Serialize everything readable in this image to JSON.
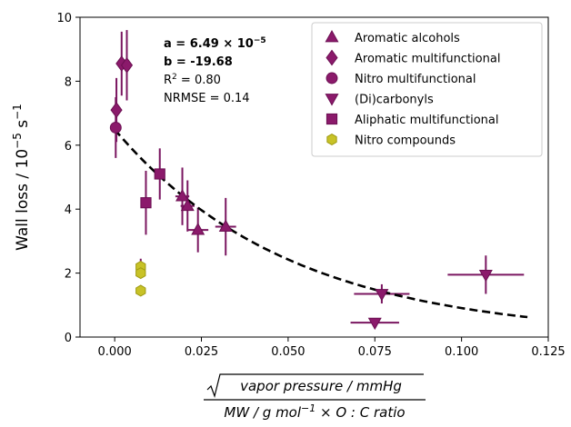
{
  "chart_data": {
    "type": "scatter",
    "xlabel": {
      "numerator": "vapor pressure / mmHg",
      "denominator_parts": [
        "MW / g mol",
        "−1",
        " × O : C ratio"
      ]
    },
    "ylabel": {
      "base": "Wall loss / 10",
      "exp_base": "−5",
      "unit": " s",
      "exp_unit": "−1"
    },
    "xlim": [
      -0.01,
      0.125
    ],
    "ylim": [
      0,
      10
    ],
    "xticks": [
      0.0,
      0.025,
      0.05,
      0.075,
      0.1,
      0.125
    ],
    "xtick_labels": [
      "0.000",
      "0.025",
      "0.050",
      "0.075",
      "0.100",
      "0.125"
    ],
    "yticks": [
      0,
      2,
      4,
      6,
      8,
      10
    ],
    "ytick_labels": [
      "0",
      "2",
      "4",
      "6",
      "8",
      "10"
    ],
    "legend_position": "top-right",
    "colors": {
      "purple": "#8b1a6b",
      "purple_edge": "#6b0f52",
      "yellow": "#c8c227",
      "yellow_edge": "#9e9a12",
      "fit": "#000000",
      "errorbar": "#7a1660"
    },
    "series": [
      {
        "name": "Aromatic alcohols",
        "marker": "triangle-up",
        "points": [
          {
            "x": 0.0195,
            "y": 4.4,
            "yerr": 0.9,
            "xerr": 0.002
          },
          {
            "x": 0.021,
            "y": 4.1,
            "yerr": 0.8,
            "xerr": 0.002
          },
          {
            "x": 0.024,
            "y": 3.35,
            "yerr": 0.7,
            "xerr": 0.003
          },
          {
            "x": 0.032,
            "y": 3.45,
            "yerr": 0.9,
            "xerr": 0.003
          }
        ]
      },
      {
        "name": "Aromatic multifunctional",
        "marker": "diamond",
        "points": [
          {
            "x": 0.0005,
            "y": 7.1,
            "yerr": 1.0,
            "xerr": 0
          },
          {
            "x": 0.002,
            "y": 8.55,
            "yerr": 1.0,
            "xerr": 0
          },
          {
            "x": 0.0035,
            "y": 8.5,
            "yerr": 1.1,
            "xerr": 0
          }
        ]
      },
      {
        "name": "Nitro multifunctional",
        "marker": "circle",
        "points": [
          {
            "x": 0.0003,
            "y": 6.55,
            "yerr": 0.95,
            "xerr": 0
          }
        ]
      },
      {
        "name": "(Di)carbonyls",
        "marker": "triangle-down",
        "points": [
          {
            "x": 0.075,
            "y": 0.45,
            "yerr": 0,
            "xerr": 0.007
          },
          {
            "x": 0.077,
            "y": 1.35,
            "yerr": 0.3,
            "xerr": 0.008
          },
          {
            "x": 0.107,
            "y": 1.95,
            "yerr": 0.6,
            "xerr": 0.011
          }
        ]
      },
      {
        "name": "Aliphatic multifunctional",
        "marker": "square",
        "points": [
          {
            "x": 0.009,
            "y": 4.2,
            "yerr": 1.0,
            "xerr": 0.0015
          },
          {
            "x": 0.013,
            "y": 5.1,
            "yerr": 0.8,
            "xerr": 0.0015
          }
        ]
      },
      {
        "name": "Nitro compounds",
        "marker": "hexagon",
        "points": [
          {
            "x": 0.0075,
            "y": 2.2,
            "yerr": 0.25,
            "xerr": 0
          },
          {
            "x": 0.0075,
            "y": 2.0,
            "yerr": 0,
            "xerr": 0
          },
          {
            "x": 0.0075,
            "y": 1.45,
            "yerr": 0,
            "xerr": 0
          }
        ]
      }
    ],
    "fit": {
      "a": 6.49e-05,
      "b": -19.68,
      "x_range": [
        0,
        0.119
      ]
    },
    "annotations": [
      {
        "prefix": "a = 6.49 × 10",
        "sup": "−5",
        "bold": true
      },
      {
        "prefix": "b = -19.68",
        "sup": "",
        "bold": true
      },
      {
        "prefix": "R",
        "sup": "2",
        "suffix": " = 0.80",
        "bold": false
      },
      {
        "prefix": "NRMSE = 0.14",
        "sup": "",
        "bold": false
      }
    ]
  }
}
